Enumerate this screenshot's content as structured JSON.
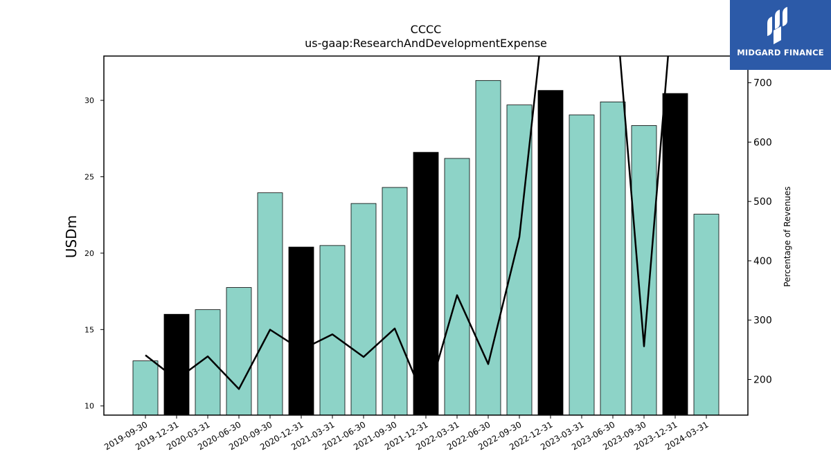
{
  "chart_data": {
    "type": "bar",
    "title": "CCCC",
    "subtitle": "us-gaap:ResearchAndDevelopmentExpense",
    "ylabel": "USDm",
    "y2label": "Percentage of Revenues",
    "ylim": [
      9.4,
      32.9
    ],
    "y2lim": [
      140,
      745
    ],
    "yticks": [
      10,
      15,
      20,
      25,
      30
    ],
    "y2ticks": [
      200,
      300,
      400,
      500,
      600,
      700
    ],
    "categories": [
      "2019-09-30",
      "2019-12-31",
      "2020-03-31",
      "2020-06-30",
      "2020-09-30",
      "2020-12-31",
      "2021-03-31",
      "2021-06-30",
      "2021-09-30",
      "2021-12-31",
      "2022-03-31",
      "2022-06-30",
      "2022-09-30",
      "2022-12-31",
      "2023-03-31",
      "2023-06-30",
      "2023-09-30",
      "2023-12-31",
      "2024-03-31"
    ],
    "series": [
      {
        "type": "bar",
        "values": [
          12.95,
          16.0,
          16.3,
          17.75,
          23.95,
          20.4,
          20.5,
          23.25,
          24.3,
          26.6,
          26.2,
          31.3,
          29.7,
          30.65,
          29.05,
          29.9,
          28.35,
          30.45,
          22.55
        ],
        "colors": [
          "#8dd3c7",
          "#000000",
          "#8dd3c7",
          "#8dd3c7",
          "#8dd3c7",
          "#000000",
          "#8dd3c7",
          "#8dd3c7",
          "#8dd3c7",
          "#000000",
          "#8dd3c7",
          "#8dd3c7",
          "#8dd3c7",
          "#000000",
          "#8dd3c7",
          "#8dd3c7",
          "#8dd3c7",
          "#000000",
          "#8dd3c7"
        ]
      },
      {
        "type": "line",
        "axis": "right",
        "color": "#000000",
        "values": [
          241,
          200,
          239,
          184,
          284,
          250,
          276,
          238,
          286,
          160,
          342,
          226,
          440,
          920,
          null,
          890,
          256,
          890,
          null
        ]
      }
    ]
  },
  "logo": {
    "text": "MIDGARD FINANCE"
  }
}
